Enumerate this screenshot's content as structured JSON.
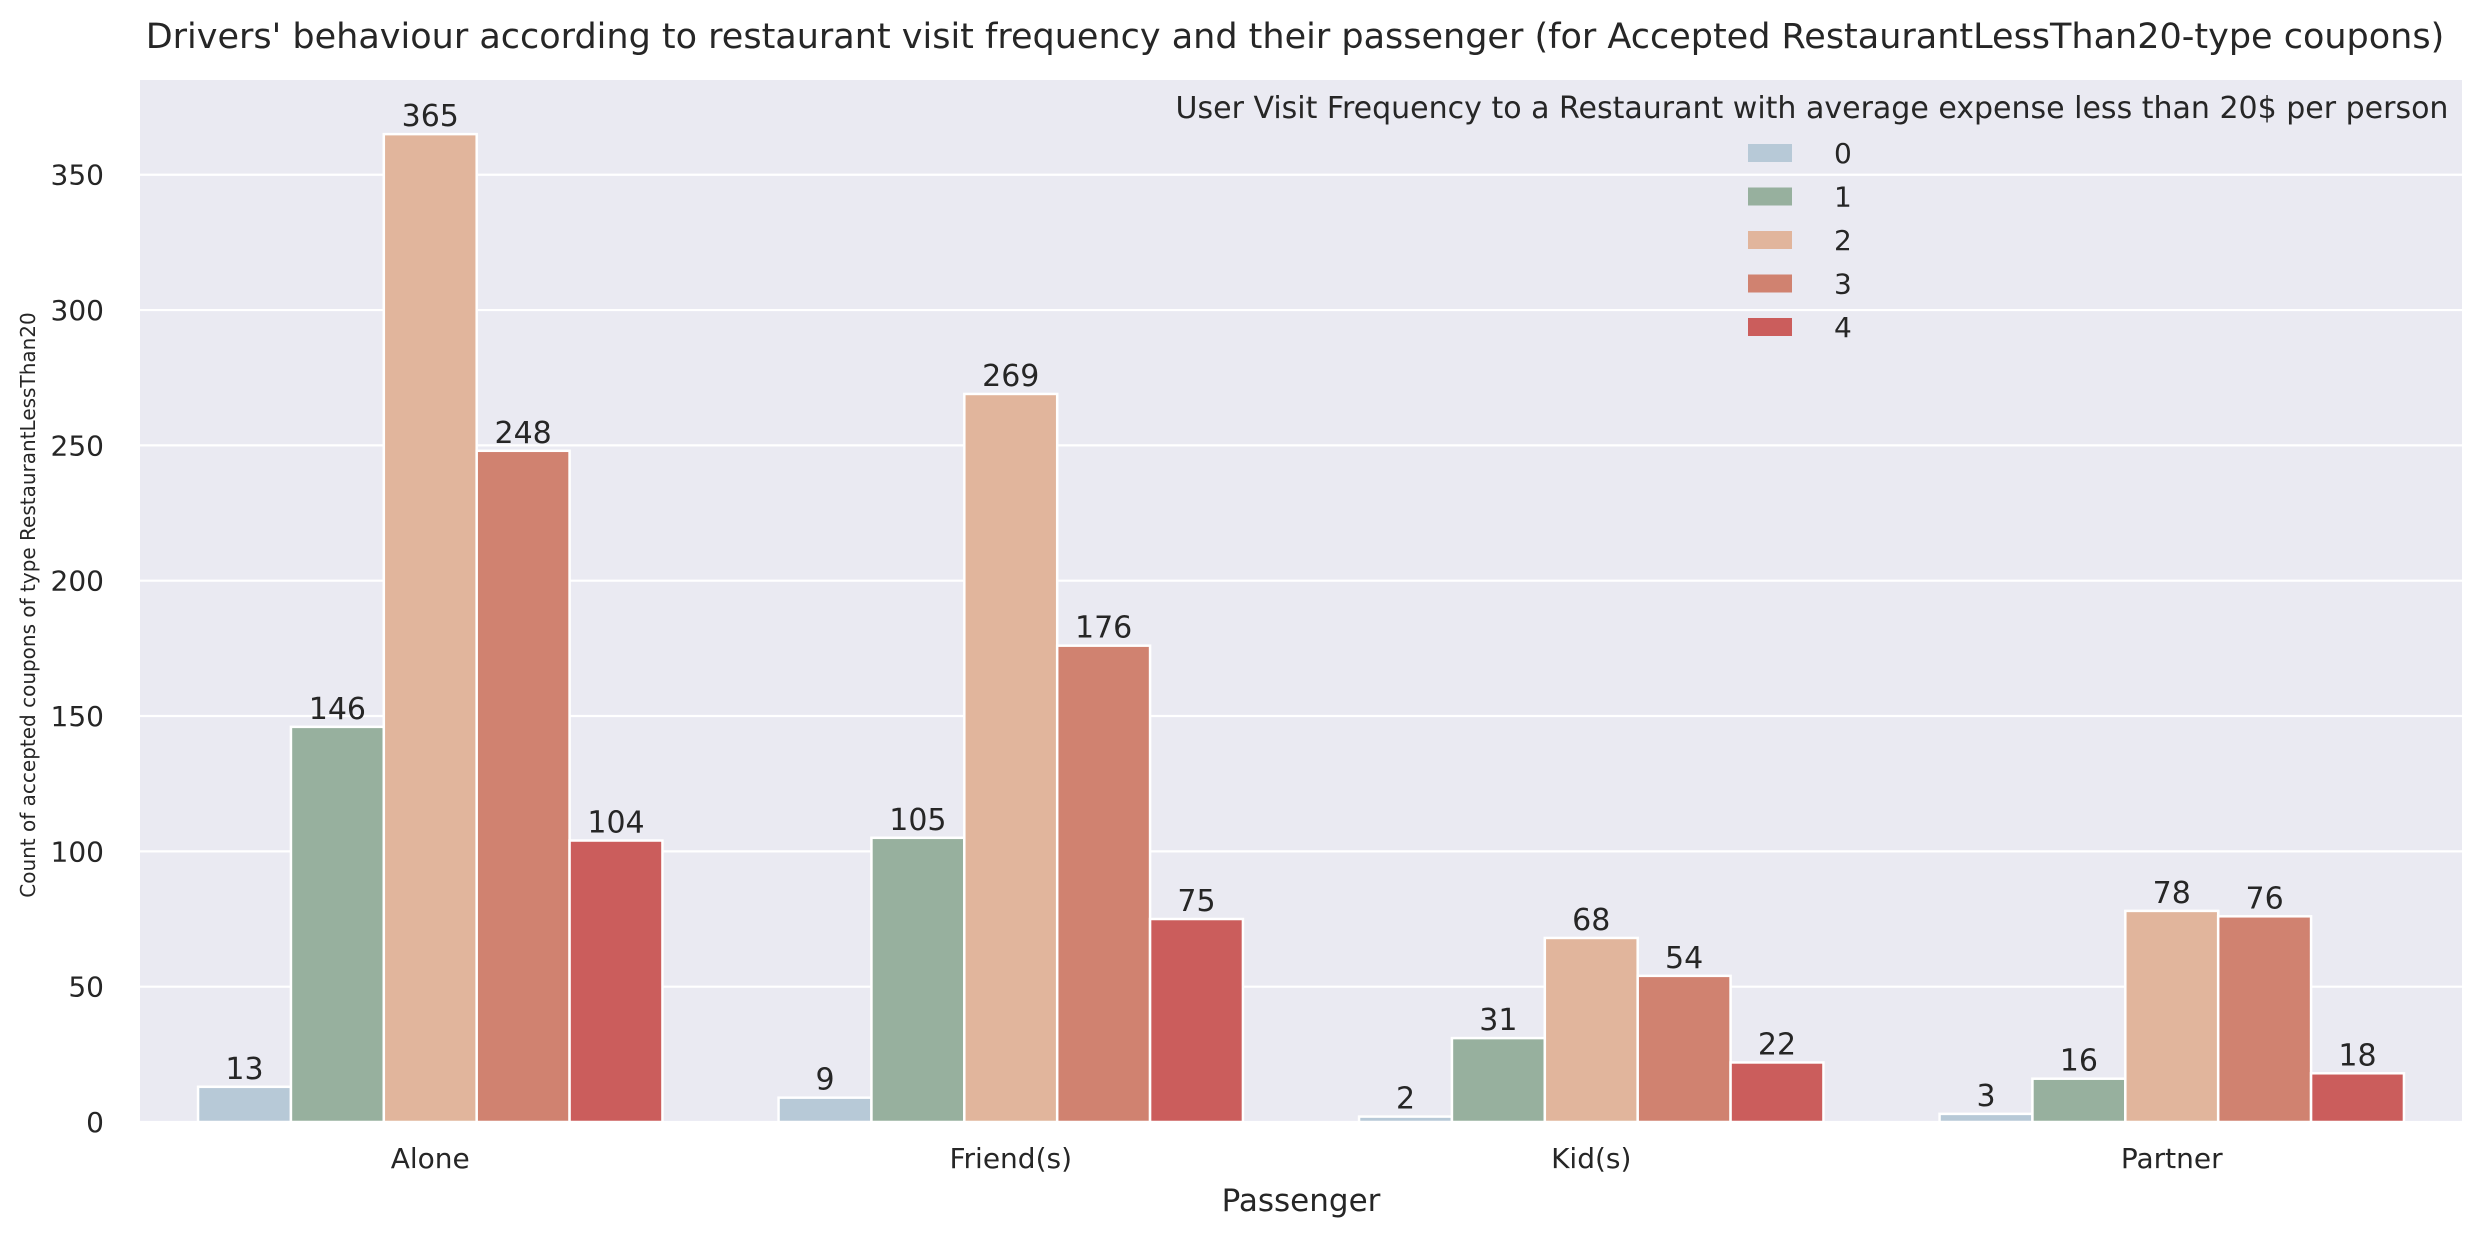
{
  "chart_data": {
    "type": "bar",
    "title": "Drivers' behaviour according to restaurant visit frequency and their passenger (for Accepted RestaurantLessThan20-type coupons)",
    "xlabel": "Passenger",
    "ylabel": "Count of accepted coupons of type RestaurantLessThan20",
    "categories": [
      "Alone",
      "Friend(s)",
      "Kid(s)",
      "Partner"
    ],
    "ylim": [
      0,
      385
    ],
    "yticks": [
      0,
      50,
      100,
      150,
      200,
      250,
      300,
      350
    ],
    "grid": true,
    "legend": {
      "title": "User Visit Frequency to a Restaurant with average expense less than 20$ per person",
      "placement": "top-right"
    },
    "series": [
      {
        "name": "0",
        "color": "#b7c9d7",
        "values": [
          13,
          9,
          2,
          3
        ]
      },
      {
        "name": "1",
        "color": "#97b09e",
        "values": [
          146,
          105,
          31,
          16
        ]
      },
      {
        "name": "2",
        "color": "#e1b59c",
        "values": [
          365,
          269,
          68,
          78
        ]
      },
      {
        "name": "3",
        "color": "#d08270",
        "values": [
          248,
          176,
          54,
          76
        ]
      },
      {
        "name": "4",
        "color": "#cb5d5c",
        "values": [
          104,
          75,
          22,
          18
        ]
      }
    ],
    "plot_background": "#eaeaf2",
    "grid_color": "#ffffff"
  }
}
